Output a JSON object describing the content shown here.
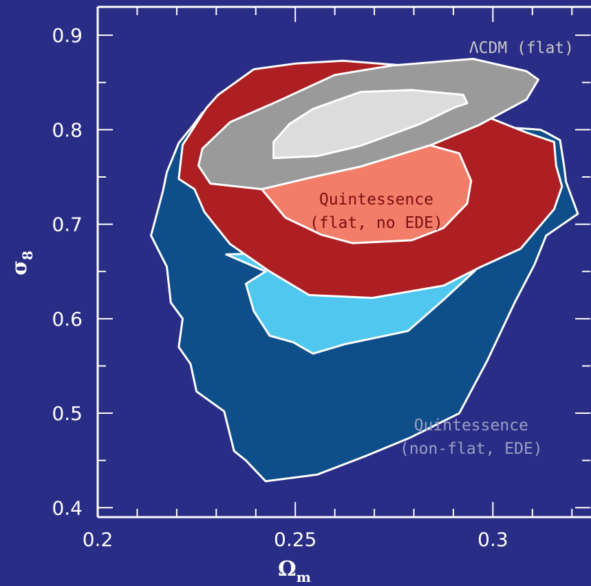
{
  "chart_data": {
    "type": "contour",
    "xlabel": "Ω",
    "xlabel_sub": "m",
    "ylabel": "σ",
    "ylabel_sub": "8",
    "xlim": [
      0.2,
      0.325
    ],
    "ylim": [
      0.39,
      0.93
    ],
    "x_ticks": [
      "0.2",
      "0.25",
      "0.3"
    ],
    "y_ticks": [
      "0.4",
      "0.5",
      "0.6",
      "0.7",
      "0.8",
      "0.9"
    ],
    "colors": {
      "background": "#2a2d86",
      "noEDE_outer": "#0e4e8a",
      "noEDE_inner": "#4fc7ee",
      "flat_outer": "#ad1f22",
      "flat_inner": "#f27d69",
      "lcdm_outer": "#9a9a9a",
      "lcdm_inner": "#dcdcdc",
      "axes": "#ffffff"
    },
    "annotations": [
      {
        "id": "lcdm",
        "lines": [
          "ΛCDM (flat)"
        ],
        "color": "#c8c8c8",
        "anchor_x": 0.3205,
        "anchor_y": 0.881,
        "align": "end"
      },
      {
        "id": "flat",
        "lines": [
          "Quintessence",
          "(flat, no EDE)"
        ],
        "color": "#7a1010",
        "anchor_x": 0.2705,
        "anchor_y": 0.721,
        "align": "middle"
      },
      {
        "id": "nonflat",
        "lines": [
          "Quintessence",
          "(non-flat, EDE)"
        ],
        "color": "#9a9ec4",
        "anchor_x": 0.2945,
        "anchor_y": 0.482,
        "align": "middle"
      }
    ],
    "regions": [
      {
        "id": "nonflat-outer",
        "color_key": "noEDE_outer",
        "points": [
          [
            0.2425,
            0.428
          ],
          [
            0.2555,
            0.435
          ],
          [
            0.268,
            0.455
          ],
          [
            0.279,
            0.474
          ],
          [
            0.2915,
            0.5
          ],
          [
            0.2985,
            0.555
          ],
          [
            0.3055,
            0.617
          ],
          [
            0.3105,
            0.657
          ],
          [
            0.3135,
            0.688
          ],
          [
            0.3215,
            0.711
          ],
          [
            0.3185,
            0.745
          ],
          [
            0.318,
            0.762
          ],
          [
            0.317,
            0.789
          ],
          [
            0.3135,
            0.797
          ],
          [
            0.312,
            0.8
          ],
          [
            0.305,
            0.802
          ],
          [
            0.29,
            0.828
          ],
          [
            0.27,
            0.855
          ],
          [
            0.25,
            0.858
          ],
          [
            0.235,
            0.843
          ],
          [
            0.2265,
            0.818
          ],
          [
            0.224,
            0.804
          ],
          [
            0.2205,
            0.786
          ],
          [
            0.2175,
            0.755
          ],
          [
            0.2165,
            0.735
          ],
          [
            0.2135,
            0.688
          ],
          [
            0.2175,
            0.655
          ],
          [
            0.2185,
            0.617
          ],
          [
            0.2215,
            0.6
          ],
          [
            0.2205,
            0.57
          ],
          [
            0.2235,
            0.552
          ],
          [
            0.225,
            0.523
          ],
          [
            0.232,
            0.502
          ],
          [
            0.2345,
            0.46
          ],
          [
            0.2375,
            0.45
          ]
        ]
      },
      {
        "id": "nonflat-inner",
        "color_key": "noEDE_inner",
        "points": [
          [
            0.2545,
            0.563
          ],
          [
            0.2625,
            0.573
          ],
          [
            0.2785,
            0.587
          ],
          [
            0.2875,
            0.62
          ],
          [
            0.2955,
            0.651
          ],
          [
            0.2915,
            0.67
          ],
          [
            0.262,
            0.672
          ],
          [
            0.2325,
            0.668
          ],
          [
            0.2425,
            0.65
          ],
          [
            0.2375,
            0.637
          ],
          [
            0.2395,
            0.608
          ],
          [
            0.2435,
            0.582
          ],
          [
            0.2495,
            0.575
          ]
        ]
      },
      {
        "id": "flat-outer",
        "color_key": "flat_outer",
        "points": [
          [
            0.2695,
            0.622
          ],
          [
            0.2875,
            0.635
          ],
          [
            0.297,
            0.655
          ],
          [
            0.307,
            0.674
          ],
          [
            0.3155,
            0.716
          ],
          [
            0.3175,
            0.74
          ],
          [
            0.316,
            0.762
          ],
          [
            0.3155,
            0.787
          ],
          [
            0.3085,
            0.797
          ],
          [
            0.2995,
            0.812
          ],
          [
            0.293,
            0.826
          ],
          [
            0.289,
            0.84
          ],
          [
            0.2795,
            0.861
          ],
          [
            0.2775,
            0.868
          ],
          [
            0.262,
            0.873
          ],
          [
            0.25,
            0.87
          ],
          [
            0.2395,
            0.864
          ],
          [
            0.2305,
            0.837
          ],
          [
            0.2275,
            0.823
          ],
          [
            0.2215,
            0.784
          ],
          [
            0.2205,
            0.748
          ],
          [
            0.2245,
            0.737
          ],
          [
            0.227,
            0.713
          ],
          [
            0.2335,
            0.679
          ],
          [
            0.2435,
            0.65
          ],
          [
            0.2535,
            0.625
          ]
        ]
      },
      {
        "id": "flat-inner",
        "color_key": "flat_inner",
        "points": [
          [
            0.2645,
            0.68
          ],
          [
            0.2795,
            0.683
          ],
          [
            0.2875,
            0.696
          ],
          [
            0.2935,
            0.722
          ],
          [
            0.2945,
            0.746
          ],
          [
            0.2915,
            0.775
          ],
          [
            0.2785,
            0.79
          ],
          [
            0.2675,
            0.794
          ],
          [
            0.253,
            0.79
          ],
          [
            0.2435,
            0.782
          ],
          [
            0.2395,
            0.762
          ],
          [
            0.2415,
            0.737
          ],
          [
            0.2475,
            0.707
          ],
          [
            0.2565,
            0.689
          ]
        ]
      },
      {
        "id": "lcdm-outer",
        "color_key": "lcdm_outer",
        "points": [
          [
            0.2415,
            0.737
          ],
          [
            0.2535,
            0.749
          ],
          [
            0.2665,
            0.761
          ],
          [
            0.2845,
            0.784
          ],
          [
            0.2965,
            0.805
          ],
          [
            0.3085,
            0.832
          ],
          [
            0.3115,
            0.853
          ],
          [
            0.3085,
            0.862
          ],
          [
            0.295,
            0.875
          ],
          [
            0.2745,
            0.868
          ],
          [
            0.26,
            0.858
          ],
          [
            0.2455,
            0.83
          ],
          [
            0.2335,
            0.808
          ],
          [
            0.2265,
            0.78
          ],
          [
            0.2255,
            0.762
          ],
          [
            0.2285,
            0.743
          ]
        ]
      },
      {
        "id": "lcdm-inner",
        "color_key": "lcdm_inner",
        "points": [
          [
            0.2445,
            0.77
          ],
          [
            0.2555,
            0.772
          ],
          [
            0.2665,
            0.783
          ],
          [
            0.2815,
            0.806
          ],
          [
            0.2905,
            0.824
          ],
          [
            0.2935,
            0.828
          ],
          [
            0.2925,
            0.837
          ],
          [
            0.2795,
            0.842
          ],
          [
            0.2665,
            0.84
          ],
          [
            0.2545,
            0.822
          ],
          [
            0.2485,
            0.806
          ],
          [
            0.2445,
            0.787
          ]
        ]
      }
    ]
  }
}
